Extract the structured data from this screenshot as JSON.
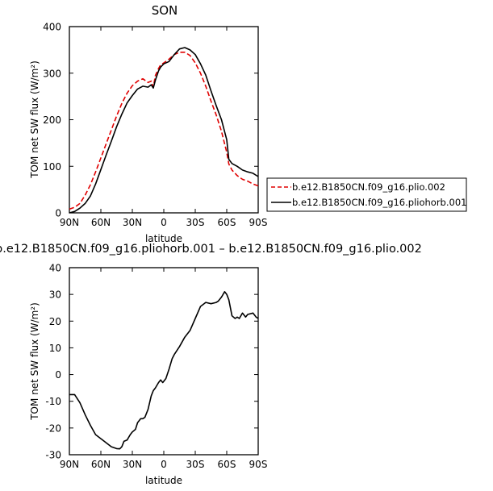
{
  "chart_data": [
    {
      "type": "line",
      "title": "SON",
      "xlabel": "latitude",
      "ylabel": "TOM net SW flux (W/m²)",
      "ylim": [
        0,
        400
      ],
      "yticks": [
        0,
        100,
        200,
        300,
        400
      ],
      "xlim": [
        -90,
        90
      ],
      "xticks": [
        -90,
        -60,
        -30,
        0,
        30,
        60,
        90
      ],
      "xtick_labels": [
        "90N",
        "60N",
        "30N",
        "0",
        "30S",
        "60S",
        "90S"
      ],
      "grid": false,
      "legend_position": "right",
      "series": [
        {
          "name": "b.e12.B1850CN.f09_g16.plio.002",
          "color": "#e00000",
          "dash": "dashed",
          "x": [
            -90,
            -85,
            -80,
            -75,
            -70,
            -65,
            -60,
            -55,
            -50,
            -45,
            -40,
            -35,
            -30,
            -25,
            -20,
            -15,
            -12,
            -10,
            -8,
            -5,
            -3,
            0,
            5,
            10,
            15,
            20,
            25,
            30,
            35,
            40,
            45,
            50,
            55,
            60,
            62,
            65,
            70,
            75,
            80,
            85,
            90
          ],
          "values": [
            8,
            12,
            20,
            38,
            60,
            88,
            118,
            148,
            178,
            208,
            235,
            257,
            273,
            283,
            288,
            280,
            283,
            270,
            295,
            310,
            318,
            322,
            330,
            340,
            345,
            345,
            338,
            322,
            300,
            272,
            240,
            210,
            175,
            130,
            105,
            92,
            80,
            72,
            68,
            62,
            58
          ]
        },
        {
          "name": "b.e12.B1850CN.f09_g16.pliohorb.001",
          "color": "#000000",
          "dash": "solid",
          "x": [
            -90,
            -85,
            -80,
            -75,
            -70,
            -65,
            -60,
            -55,
            -50,
            -45,
            -40,
            -35,
            -30,
            -25,
            -20,
            -15,
            -12,
            -10,
            -8,
            -5,
            -3,
            0,
            5,
            10,
            15,
            20,
            25,
            30,
            35,
            40,
            45,
            50,
            55,
            60,
            62,
            65,
            70,
            75,
            80,
            85,
            90
          ],
          "values": [
            0,
            3,
            10,
            20,
            36,
            62,
            93,
            124,
            154,
            185,
            212,
            236,
            252,
            266,
            272,
            270,
            275,
            268,
            285,
            305,
            313,
            320,
            325,
            340,
            352,
            355,
            350,
            340,
            320,
            296,
            262,
            230,
            200,
            157,
            115,
            106,
            100,
            92,
            88,
            85,
            78
          ]
        }
      ]
    },
    {
      "type": "line",
      "title": "b.e12.B1850CN.f09_g16.pliohorb.001 – b.e12.B1850CN.f09_g16.plio.002",
      "xlabel": "latitude",
      "ylabel": "TOM net SW flux (W/m²)",
      "ylim": [
        -30,
        40
      ],
      "yticks": [
        -30,
        -20,
        -10,
        0,
        10,
        20,
        30,
        40
      ],
      "xlim": [
        -90,
        90
      ],
      "xticks": [
        -90,
        -60,
        -30,
        0,
        30,
        60,
        90
      ],
      "xtick_labels": [
        "90N",
        "60N",
        "30N",
        "0",
        "30S",
        "60S",
        "90S"
      ],
      "grid": false,
      "series": [
        {
          "color": "#000000",
          "dash": "solid",
          "x": [
            -90,
            -85,
            -80,
            -75,
            -70,
            -65,
            -60,
            -55,
            -50,
            -45,
            -42,
            -40,
            -38,
            -35,
            -32,
            -30,
            -27,
            -25,
            -22,
            -20,
            -18,
            -15,
            -12,
            -10,
            -8,
            -5,
            -3,
            -1,
            0,
            2,
            5,
            8,
            10,
            15,
            20,
            25,
            30,
            35,
            40,
            45,
            50,
            52,
            55,
            58,
            60,
            62,
            65,
            68,
            70,
            72,
            75,
            78,
            80,
            85,
            88,
            90
          ],
          "values": [
            -7.5,
            -7.5,
            -10.5,
            -15,
            -19,
            -22.5,
            -24,
            -25.5,
            -27,
            -27.7,
            -27.8,
            -27,
            -25,
            -24.5,
            -22.5,
            -21.5,
            -20.5,
            -18,
            -16.5,
            -16.5,
            -16,
            -13,
            -8,
            -6,
            -5,
            -3,
            -2,
            -3,
            -2.5,
            -1.5,
            2,
            6,
            7.5,
            10.5,
            14,
            16.5,
            21,
            25.5,
            27,
            26.5,
            27,
            27.5,
            29,
            31,
            30,
            28,
            22,
            21,
            21.5,
            21,
            23,
            21.5,
            22.5,
            23,
            21.5,
            21
          ]
        }
      ]
    }
  ]
}
